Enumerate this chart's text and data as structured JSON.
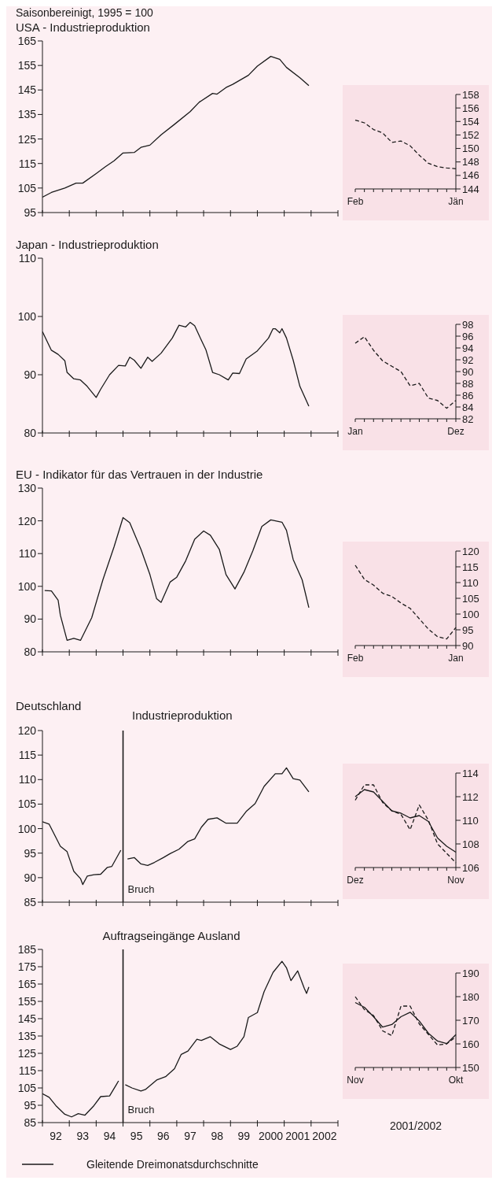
{
  "chart_data": [
    {
      "type": "line",
      "title": "USA - Industrieproduktion",
      "annotations": [
        "Saisonbereinigt, 1995 = 100"
      ],
      "x": [
        "1992-01",
        "1992-05",
        "1992-11",
        "1993-04",
        "1993-07",
        "1994-01",
        "1994-05",
        "1994-09",
        "1995-01",
        "1995-06",
        "1995-09",
        "1996-01",
        "1996-06",
        "1996-12",
        "1997-07",
        "1997-11",
        "1998-05",
        "1998-07",
        "1998-11",
        "1999-02",
        "1999-09",
        "2000-01",
        "2000-07",
        "2000-11",
        "2001-02",
        "2001-08",
        "2001-12"
      ],
      "series": [
        {
          "color": "#1a1a1a",
          "values": [
            101.3,
            103.2,
            105,
            107,
            107,
            110.9,
            113.6,
            116.1,
            119.3,
            119.5,
            121.6,
            122.5,
            126.7,
            131,
            136.2,
            140,
            143.6,
            143.3,
            146,
            147.3,
            151,
            154.7,
            158.7,
            157.5,
            154.2,
            150,
            146.8
          ]
        }
      ],
      "xlim": [
        "1992",
        "2003"
      ],
      "xticks": [
        {
          "value": "1992",
          "label": null
        },
        {
          "value": "1993",
          "label": null
        },
        {
          "value": "1994",
          "label": null
        },
        {
          "value": "1995",
          "label": null
        },
        {
          "value": "1996",
          "label": null
        },
        {
          "value": "1997",
          "label": null
        },
        {
          "value": "1998",
          "label": null
        },
        {
          "value": "1999",
          "label": null
        },
        {
          "value": "2000",
          "label": null
        },
        {
          "value": "2001",
          "label": null
        },
        {
          "value": "2002",
          "label": null
        },
        {
          "value": "2003",
          "label": null
        }
      ],
      "ylim": [
        95,
        165
      ],
      "yticks": [
        95,
        105,
        115,
        125,
        135,
        145,
        155,
        165
      ],
      "tick_labels": "y",
      "grid": false,
      "legend": false
    },
    {
      "type": "line",
      "categories": [
        "Feb",
        null,
        null,
        null,
        null,
        null,
        null,
        null,
        null,
        null,
        null,
        "Jän"
      ],
      "series": [
        {
          "color": "#1a1a1a",
          "values": [
            154.2,
            153.8,
            152.8,
            152.3,
            150.9,
            151.1,
            150.4,
            149,
            147.8,
            147.3,
            147.1,
            147.0
          ]
        }
      ],
      "ylim": [
        144,
        158
      ],
      "yticks": [
        144,
        146,
        148,
        150,
        152,
        154,
        156,
        158
      ],
      "line_style": "dashed",
      "grid": false,
      "legend": false
    },
    {
      "type": "line",
      "title": "Japan - Industrieproduktion",
      "x": [
        "1992-01",
        "1992-05",
        "1992-08",
        "1992-11",
        "1992-12",
        "1993-03",
        "1993-06",
        "1993-09",
        "1994-01",
        "1994-03",
        "1994-07",
        "1994-11",
        "1995-02",
        "1995-04",
        "1995-06",
        "1995-09",
        "1995-12",
        "1996-02",
        "1996-06",
        "1996-11",
        "1997-02",
        "1997-05",
        "1997-07",
        "1997-09",
        "1997-12",
        "1998-02",
        "1998-05",
        "1998-08",
        "1998-12",
        "1999-02",
        "1999-05",
        "1999-08",
        "2000-01",
        "2000-06",
        "2000-08",
        "2000-09",
        "2000-11",
        "2000-12",
        "2001-02",
        "2001-05",
        "2001-08",
        "2001-12"
      ],
      "series": [
        {
          "color": "#1a1a1a",
          "values": [
            97.4,
            94.2,
            93.5,
            92.4,
            90.4,
            89.3,
            89.1,
            88,
            86.1,
            87.5,
            90,
            91.6,
            91.5,
            93,
            92.5,
            91.1,
            93,
            92.3,
            93.7,
            96.3,
            98.5,
            98.2,
            99.0,
            98.4,
            95.9,
            94.3,
            90.4,
            90,
            89.1,
            90.3,
            90.2,
            92.7,
            94.1,
            96.3,
            97.9,
            97.9,
            97.2,
            97.9,
            96.3,
            92.5,
            88,
            84.6
          ]
        }
      ],
      "xlim": [
        "1992",
        "2003"
      ],
      "xticks": [
        {
          "value": "1992",
          "label": null
        },
        {
          "value": "1993",
          "label": null
        },
        {
          "value": "1994",
          "label": null
        },
        {
          "value": "1995",
          "label": null
        },
        {
          "value": "1996",
          "label": null
        },
        {
          "value": "1997",
          "label": null
        },
        {
          "value": "1998",
          "label": null
        },
        {
          "value": "1999",
          "label": null
        },
        {
          "value": "2000",
          "label": null
        },
        {
          "value": "2001",
          "label": null
        },
        {
          "value": "2002",
          "label": null
        },
        {
          "value": "2003",
          "label": null
        }
      ],
      "ylim": [
        80,
        110
      ],
      "yticks": [
        80,
        90,
        100,
        110
      ],
      "tick_labels": "y",
      "grid": false,
      "legend": false
    },
    {
      "type": "line",
      "categories": [
        "Jan",
        null,
        null,
        null,
        null,
        null,
        null,
        null,
        null,
        null,
        null,
        "Dez"
      ],
      "series": [
        {
          "color": "#1a1a1a",
          "values": [
            94.8,
            95.9,
            93.6,
            91.8,
            90.9,
            90,
            87.6,
            88,
            85.5,
            85.1,
            83.8,
            85.1
          ]
        }
      ],
      "ylim": [
        82,
        98
      ],
      "yticks": [
        82,
        84,
        86,
        88,
        90,
        92,
        94,
        96,
        98
      ],
      "line_style": "dashed",
      "grid": false,
      "legend": false
    },
    {
      "type": "line",
      "title": "EU - Indikator für das Vertrauen in der Industrie",
      "x": [
        "1992-02",
        "1992-05",
        "1992-08",
        "1992-09",
        "1992-12",
        "1993-03",
        "1993-06",
        "1993-11",
        "1994-04",
        "1994-09",
        "1995-01",
        "1995-04",
        "1995-09",
        "1996-01",
        "1996-04",
        "1996-06",
        "1996-10",
        "1997-01",
        "1997-05",
        "1997-09",
        "1998-01",
        "1998-04",
        "1998-08",
        "1998-11",
        "1999-03",
        "1999-07",
        "1999-11",
        "2000-03",
        "2000-07",
        "2000-12",
        "2001-02",
        "2001-05",
        "2001-09",
        "2001-12"
      ],
      "series": [
        {
          "color": "#1a1a1a",
          "values": [
            98.7,
            98.6,
            95.8,
            91.2,
            83.5,
            84.1,
            83.5,
            90.4,
            102,
            112.1,
            121,
            119.4,
            111.3,
            103.6,
            96.2,
            95.1,
            101.3,
            102.8,
            107.8,
            114.4,
            116.9,
            115.6,
            111.3,
            103.6,
            99.2,
            104.3,
            110.9,
            118.3,
            120.3,
            119.6,
            117.1,
            108.2,
            102,
            93.5
          ]
        }
      ],
      "xlim": [
        "1992",
        "2003"
      ],
      "xticks": [
        {
          "value": "1992",
          "label": null
        },
        {
          "value": "1993",
          "label": null
        },
        {
          "value": "1994",
          "label": null
        },
        {
          "value": "1995",
          "label": null
        },
        {
          "value": "1996",
          "label": null
        },
        {
          "value": "1997",
          "label": null
        },
        {
          "value": "1998",
          "label": null
        },
        {
          "value": "1999",
          "label": null
        },
        {
          "value": "2000",
          "label": null
        },
        {
          "value": "2001",
          "label": null
        },
        {
          "value": "2002",
          "label": null
        },
        {
          "value": "2003",
          "label": null
        }
      ],
      "ylim": [
        80,
        130
      ],
      "yticks": [
        80,
        90,
        100,
        110,
        120,
        130
      ],
      "tick_labels": "y",
      "grid": false,
      "legend": false
    },
    {
      "type": "line",
      "categories": [
        "Feb",
        null,
        null,
        null,
        null,
        null,
        null,
        null,
        null,
        null,
        null,
        "Jan"
      ],
      "series": [
        {
          "color": "#1a1a1a",
          "values": [
            115.5,
            111,
            109.2,
            106.6,
            105.6,
            103.5,
            101.8,
            98.5,
            95.2,
            92.8,
            92.1,
            95.7
          ]
        }
      ],
      "ylim": [
        90,
        120
      ],
      "yticks": [
        90,
        95,
        100,
        105,
        110,
        115,
        120
      ],
      "line_style": "dashed",
      "grid": false,
      "legend": false
    },
    {
      "type": "line",
      "title": "Deutschland",
      "subtitle": "Industrieproduktion",
      "x": [
        "1992-01",
        "1992-04",
        "1992-07",
        "1992-09",
        "1992-12",
        "1993-03",
        "1993-06",
        "1993-07",
        "1993-09",
        "1993-12",
        "1994-03",
        "1994-06",
        "1994-08",
        "1994-12",
        "1995-01",
        "1995-03",
        "1995-06",
        "1995-09",
        "1995-12",
        "1996-03",
        "1996-07",
        "1996-10",
        "1997-02",
        "1997-06",
        "1997-09",
        "1997-12",
        "1998-03",
        "1998-07",
        "1998-11",
        "1999-04",
        "1999-08",
        "1999-12",
        "2000-04",
        "2000-09",
        "2000-12",
        "2001-02",
        "2001-05",
        "2001-08",
        "2001-12"
      ],
      "series": [
        {
          "color": "#1a1a1a",
          "values": [
            101.4,
            100.9,
            98.2,
            96.4,
            95.3,
            91.3,
            89.8,
            88.6,
            90.3,
            90.6,
            90.7,
            92.1,
            92.3,
            95.6,
            null,
            93.8,
            94.1,
            92.8,
            92.5,
            93.1,
            94.1,
            94.9,
            95.8,
            97.4,
            97.9,
            100.3,
            101.9,
            102.2,
            101.1,
            101.1,
            103.5,
            105.1,
            108.6,
            111.2,
            111.2,
            112.4,
            110.2,
            109.9,
            107.5
          ]
        }
      ],
      "ref_lines": [
        {
          "axis": "x",
          "value": "1995-01",
          "label": "Bruch",
          "color": "#1a1a1a"
        }
      ],
      "xlim": [
        "1992",
        "2003"
      ],
      "xticks": [
        {
          "value": "1992",
          "label": null
        },
        {
          "value": "1993",
          "label": null
        },
        {
          "value": "1994",
          "label": null
        },
        {
          "value": "1995",
          "label": null
        },
        {
          "value": "1996",
          "label": null
        },
        {
          "value": "1997",
          "label": null
        },
        {
          "value": "1998",
          "label": null
        },
        {
          "value": "1999",
          "label": null
        },
        {
          "value": "2000",
          "label": null
        },
        {
          "value": "2001",
          "label": null
        },
        {
          "value": "2002",
          "label": null
        },
        {
          "value": "2003",
          "label": null
        }
      ],
      "ylim": [
        85,
        120
      ],
      "yticks": [
        85,
        90,
        95,
        100,
        105,
        110,
        115,
        120
      ],
      "tick_labels": "y",
      "grid": false,
      "legend": false
    },
    {
      "type": "line",
      "categories": [
        "Dez",
        null,
        null,
        null,
        null,
        null,
        null,
        null,
        null,
        null,
        null,
        "Nov"
      ],
      "series": [
        {
          "color": "#1a1a1a",
          "line_style": "solid",
          "values": [
            112,
            112.6,
            112.4,
            111.6,
            110.8,
            110.6,
            110.2,
            110.4,
            109.9,
            108.5,
            107.8,
            107.3
          ]
        },
        {
          "color": "#1a1a1a",
          "line_style": "dashed",
          "values": [
            111.7,
            113,
            113,
            111.5,
            110.8,
            110.5,
            109.2,
            111.3,
            110,
            108,
            107.2,
            106.4
          ]
        }
      ],
      "ylim": [
        106,
        114
      ],
      "yticks": [
        106,
        108,
        110,
        112,
        114
      ],
      "grid": false,
      "legend": false
    },
    {
      "type": "line",
      "title": "Auftragseingänge Ausland",
      "x": [
        "1992-01",
        "1992-04",
        "1992-07",
        "1992-11",
        "1993-02",
        "1993-05",
        "1993-08",
        "1993-12",
        "1994-03",
        "1994-07",
        "1994-10",
        "1994-11",
        "1995-01",
        "1995-02",
        "1995-05",
        "1995-09",
        "1995-11",
        "1996-04",
        "1996-08",
        "1996-12",
        "1997-03",
        "1997-06",
        "1997-10",
        "1997-12",
        "1998-04",
        "1998-08",
        "1999-01",
        "1999-04",
        "1999-07",
        "1999-09",
        "2000-01",
        "2000-04",
        "2000-08",
        "2000-12",
        "2001-02",
        "2001-04",
        "2001-07",
        "2001-10",
        "2001-11",
        "2001-12"
      ],
      "series": [
        {
          "color": "#1a1a1a",
          "values": [
            101.7,
            99.6,
            94.8,
            89.8,
            88.3,
            90.2,
            89.3,
            94.8,
            100,
            100.4,
            106.9,
            109.1,
            null,
            106.9,
            105,
            103.2,
            104.1,
            109.6,
            111.5,
            116.1,
            124.4,
            126.3,
            133.1,
            132.4,
            134.6,
            130.4,
            127.2,
            129.1,
            134.6,
            145.7,
            148.5,
            160.6,
            171.7,
            178.1,
            174.4,
            167,
            172.6,
            162.4,
            159.6,
            163.3
          ]
        }
      ],
      "ref_lines": [
        {
          "axis": "x",
          "value": "1995-01",
          "label": "Bruch",
          "color": "#1a1a1a"
        }
      ],
      "xlim": [
        "1992",
        "2003"
      ],
      "xticks": [
        {
          "value": "1992",
          "label": null
        },
        {
          "value": "1992-07",
          "label": "92"
        },
        {
          "value": "1993",
          "label": null
        },
        {
          "value": "1993-07",
          "label": "93"
        },
        {
          "value": "1994",
          "label": null
        },
        {
          "value": "1994-07",
          "label": "94"
        },
        {
          "value": "1995",
          "label": null
        },
        {
          "value": "1995-07",
          "label": "95"
        },
        {
          "value": "1996",
          "label": null
        },
        {
          "value": "1996-07",
          "label": "96"
        },
        {
          "value": "1997",
          "label": null
        },
        {
          "value": "1997-07",
          "label": "97"
        },
        {
          "value": "1998",
          "label": null
        },
        {
          "value": "1998-07",
          "label": "98"
        },
        {
          "value": "1999",
          "label": null
        },
        {
          "value": "1999-07",
          "label": "99"
        },
        {
          "value": "2000",
          "label": null
        },
        {
          "value": "2000-07",
          "label": "2000"
        },
        {
          "value": "2001",
          "label": null
        },
        {
          "value": "2001-07",
          "label": "2001"
        },
        {
          "value": "2002",
          "label": null
        },
        {
          "value": "2002-07",
          "label": "2002"
        },
        {
          "value": "2003",
          "label": null
        }
      ],
      "ylim": [
        85,
        185
      ],
      "yticks": [
        85,
        95,
        105,
        115,
        125,
        135,
        145,
        155,
        165,
        175,
        185
      ],
      "grid": false,
      "legend": false
    },
    {
      "type": "line",
      "categories": [
        "Nov",
        null,
        null,
        null,
        null,
        null,
        null,
        null,
        null,
        null,
        null,
        "Okt"
      ],
      "xlabel": "2001/2002",
      "series": [
        {
          "name": "Gleitende Dreimonatsdurchschnitte",
          "color": "#1a1a1a",
          "line_style": "solid",
          "values": [
            177.5,
            175.5,
            171.5,
            167.1,
            168.2,
            171.5,
            173.4,
            169.7,
            164.5,
            161.2,
            160.1,
            163.9
          ]
        },
        {
          "color": "#1a1a1a",
          "line_style": "dashed",
          "values": [
            180,
            174.5,
            172,
            165.5,
            163.5,
            176,
            176,
            168.5,
            164,
            159.5,
            160,
            163
          ]
        }
      ],
      "ylim": [
        150,
        190
      ],
      "yticks": [
        150,
        160,
        170,
        180,
        190
      ],
      "grid": false,
      "legend": "bottom"
    }
  ]
}
